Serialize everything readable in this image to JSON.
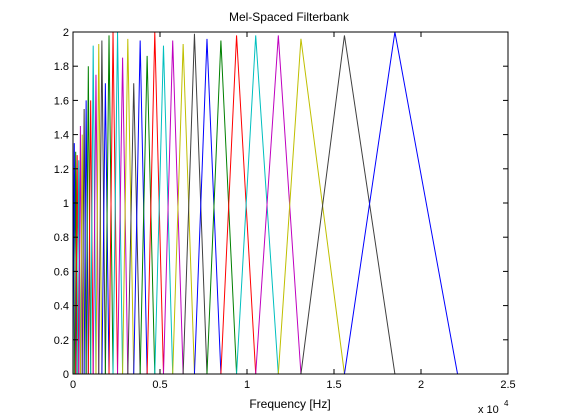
{
  "chart_data": {
    "type": "line",
    "title": "Mel-Spaced Filterbank",
    "xlabel": "Frequency [Hz]",
    "ylabel": "",
    "x_exponent_label": "x 10",
    "x_exponent_power": "4",
    "xlim": [
      0,
      25000
    ],
    "ylim": [
      0,
      2
    ],
    "x_ticks": [
      0,
      5000,
      10000,
      15000,
      20000,
      25000
    ],
    "x_tick_labels": [
      "0",
      "0.5",
      "1",
      "1.5",
      "2",
      "2.5"
    ],
    "y_ticks": [
      0,
      0.2,
      0.4,
      0.6,
      0.8,
      1,
      1.2,
      1.4,
      1.6,
      1.8,
      2
    ],
    "y_tick_labels": [
      "0",
      "0.2",
      "0.4",
      "0.6",
      "0.8",
      "1",
      "1.2",
      "1.4",
      "1.6",
      "1.8",
      "2"
    ],
    "grid": false,
    "colors": [
      "#0000ff",
      "#008000",
      "#ff0000",
      "#00bfbf",
      "#bf00bf",
      "#bfbf00",
      "#404040"
    ],
    "filter_edges": [
      0,
      75,
      155,
      240,
      330,
      425,
      530,
      640,
      755,
      880,
      1015,
      1160,
      1320,
      1480,
      1660,
      1860,
      2070,
      2300,
      2560,
      2850,
      3150,
      3490,
      3860,
      4260,
      4700,
      5200,
      5730,
      6330,
      6980,
      7700,
      8500,
      9400,
      10500,
      11800,
      13100,
      15600,
      18500,
      22100
    ],
    "peaks": [
      1.35,
      1.3,
      1.28,
      1.25,
      1.45,
      1.4,
      1.55,
      1.6,
      1.8,
      1.6,
      1.92,
      1.75,
      1.93,
      1.95,
      1.7,
      1.98,
      2.0,
      2.0,
      1.85,
      1.96,
      1.7,
      1.95,
      1.86,
      2.0,
      1.92,
      1.95,
      1.93,
      1.99,
      1.96,
      1.95,
      1.98,
      1.98,
      1.98,
      1.96,
      1.98
    ]
  }
}
